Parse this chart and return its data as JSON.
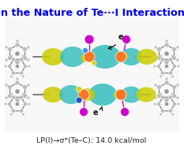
{
  "title": "On the Nature of Te···I Interactions",
  "title_color": "#0000EE",
  "title_fontsize": 9.2,
  "title_bold": true,
  "caption": "LP(I)→σ*(Te–C): 14.0 kcal/mol",
  "caption_fontsize": 6.8,
  "caption_color": "#222222",
  "background_color": "#FFFFFF",
  "fig_width": 2.33,
  "fig_height": 1.89,
  "dpi": 100,
  "teal": "#3BBFBF",
  "yellow_green": "#CCCC00",
  "purple": "#AA00AA",
  "purple2": "#CC00CC",
  "orange": "#FF7722",
  "gray_dark": "#666666",
  "gray_med": "#999999",
  "gray_light": "#BBBBBB",
  "blue_atom": "#2255BB",
  "yellow_atom": "#DDCC00",
  "arrow_color": "#111111",
  "e_fontsize": 7
}
